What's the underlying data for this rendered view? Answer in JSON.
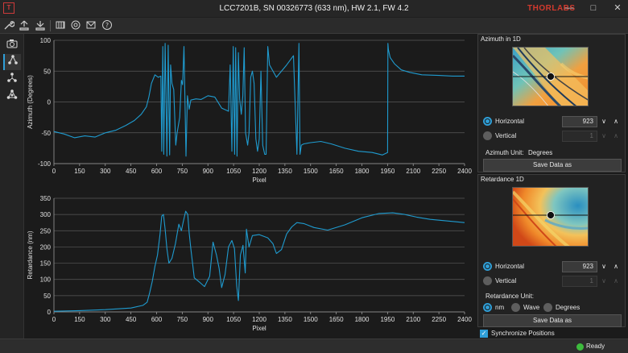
{
  "window": {
    "title": "LCC7201B, SN 00326773 (633 nm), HW 2.1, FW 4.2",
    "app_icon": "T",
    "brand": "THORLABS",
    "minimize_glyph": "—",
    "maximize_glyph": "□",
    "close_glyph": "✕"
  },
  "toolbar": {
    "icons": [
      "wrench-icon",
      "upload-icon",
      "download-icon",
      "grid-icon",
      "power-icon",
      "settings-icon",
      "mail-icon",
      "help-icon"
    ]
  },
  "sidebar": {
    "items": [
      {
        "icon": "camera-icon",
        "glyph": "◙",
        "active": false
      },
      {
        "icon": "network-azimuth-icon",
        "glyph": "⋏",
        "active": true
      },
      {
        "icon": "network-retardance-icon",
        "glyph": "⋔",
        "active": false
      },
      {
        "icon": "network-combined-icon",
        "glyph": "⁂",
        "active": false
      }
    ]
  },
  "chart_data": [
    {
      "type": "line",
      "title": "",
      "xlabel": "Pixel",
      "ylabel": "Azimuth (Degrees)",
      "xlim": [
        0,
        2400
      ],
      "ylim": [
        -100,
        100
      ],
      "xticks": [
        0,
        150,
        300,
        450,
        600,
        750,
        900,
        1050,
        1200,
        1350,
        1500,
        1650,
        1800,
        1950,
        2100,
        2250,
        2400
      ],
      "yticks": [
        100,
        50,
        0,
        -50,
        -100
      ],
      "grid": true,
      "color": "#1f9bcf",
      "x": [
        0,
        60,
        120,
        180,
        240,
        300,
        360,
        420,
        470,
        510,
        540,
        555,
        570,
        590,
        610,
        625,
        630,
        636,
        642,
        650,
        660,
        668,
        676,
        682,
        690,
        700,
        712,
        720,
        735,
        745,
        752,
        760,
        772,
        780,
        790,
        800,
        830,
        860,
        900,
        940,
        980,
        1020,
        1030,
        1040,
        1048,
        1056,
        1062,
        1070,
        1078,
        1085,
        1095,
        1104,
        1112,
        1120,
        1132,
        1140,
        1150,
        1160,
        1170,
        1180,
        1190,
        1200,
        1210,
        1220,
        1232,
        1240,
        1250,
        1260,
        1300,
        1360,
        1400,
        1420,
        1432,
        1438,
        1446,
        1460,
        1500,
        1560,
        1620,
        1700,
        1780,
        1860,
        1920,
        1950,
        1952,
        1955,
        1965,
        1990,
        2030,
        2080,
        2150,
        2250,
        2330,
        2400
      ],
      "y": [
        -48,
        -52,
        -58,
        -55,
        -57,
        -50,
        -46,
        -38,
        -30,
        -20,
        -8,
        8,
        30,
        44,
        40,
        42,
        -80,
        90,
        -85,
        95,
        -88,
        92,
        -86,
        60,
        30,
        20,
        -70,
        -50,
        -25,
        35,
        28,
        90,
        -88,
        10,
        -12,
        3,
        5,
        4,
        10,
        8,
        -10,
        -15,
        60,
        -80,
        90,
        -85,
        88,
        -88,
        80,
        5,
        -20,
        10,
        88,
        -50,
        -70,
        -50,
        40,
        50,
        30,
        -60,
        -80,
        -60,
        50,
        -70,
        -85,
        -85,
        90,
        60,
        40,
        60,
        75,
        -85,
        95,
        -85,
        -70,
        -68,
        -66,
        -64,
        -68,
        -75,
        -80,
        -82,
        -86,
        -82,
        95,
        85,
        72,
        62,
        52,
        48,
        44,
        43,
        42,
        42
      ]
    },
    {
      "type": "line",
      "title": "",
      "xlabel": "Pixel",
      "ylabel": "Retardance (nm)",
      "xlim": [
        0,
        2400
      ],
      "ylim": [
        0,
        350
      ],
      "xticks": [
        0,
        150,
        300,
        450,
        600,
        750,
        900,
        1050,
        1200,
        1350,
        1500,
        1650,
        1800,
        1950,
        2100,
        2250,
        2400
      ],
      "yticks": [
        350,
        300,
        250,
        200,
        150,
        100,
        50,
        0
      ],
      "grid": true,
      "color": "#1f9bcf",
      "x": [
        0,
        150,
        300,
        450,
        520,
        545,
        560,
        575,
        590,
        605,
        620,
        630,
        640,
        650,
        660,
        672,
        690,
        710,
        730,
        745,
        755,
        770,
        782,
        790,
        800,
        820,
        850,
        880,
        910,
        930,
        950,
        965,
        980,
        1000,
        1020,
        1040,
        1055,
        1068,
        1078,
        1090,
        1105,
        1118,
        1125,
        1140,
        1160,
        1200,
        1250,
        1280,
        1300,
        1330,
        1360,
        1390,
        1420,
        1460,
        1520,
        1600,
        1700,
        1800,
        1900,
        1980,
        2050,
        2120,
        2200,
        2300,
        2400
      ],
      "y": [
        2,
        4,
        7,
        12,
        20,
        30,
        60,
        95,
        140,
        175,
        240,
        295,
        300,
        255,
        195,
        150,
        165,
        210,
        270,
        250,
        275,
        310,
        300,
        245,
        195,
        105,
        92,
        78,
        110,
        215,
        175,
        135,
        75,
        115,
        200,
        220,
        195,
        80,
        35,
        175,
        205,
        120,
        255,
        200,
        235,
        238,
        228,
        210,
        180,
        192,
        240,
        262,
        275,
        272,
        260,
        252,
        268,
        290,
        303,
        305,
        300,
        292,
        285,
        280,
        275
      ]
    }
  ],
  "azimuth_panel": {
    "title": "Azimuth in 1D",
    "horizontal_label": "Horizontal",
    "horizontal_value": "923",
    "vertical_label": "Vertical",
    "vertical_value": "1",
    "unit_label": "Azimuth Unit:",
    "unit_value": "Degrees",
    "save_label": "Save Data as"
  },
  "retardance_panel": {
    "title": "Retardance 1D",
    "horizontal_label": "Horizontal",
    "horizontal_value": "923",
    "vertical_label": "Vertical",
    "vertical_value": "1",
    "unit_label": "Retardance Unit:",
    "units": [
      "nm",
      "Wave",
      "Degrees"
    ],
    "selected_unit": "nm",
    "save_label": "Save Data as"
  },
  "sync": {
    "label": "Synchronize Positions",
    "checked": true
  },
  "status": {
    "text": "Ready",
    "color": "#3dbb3d"
  }
}
